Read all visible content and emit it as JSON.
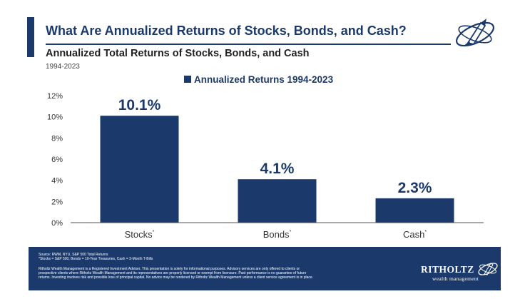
{
  "header": {
    "title": "What Are Annualized Returns of Stocks, Bonds, and Cash?",
    "subtitle": "Annualized Total Returns of Stocks, Bonds, and Cash",
    "date_range": "1994-2023"
  },
  "chart_data": {
    "type": "bar",
    "categories": [
      "Stocks",
      "Bonds",
      "Cash"
    ],
    "series": [
      {
        "name": "Annualized Returns 1994-2023",
        "values": [
          10.1,
          4.1,
          2.3
        ]
      }
    ],
    "data_labels": [
      "10.1%",
      "4.1%",
      "2.3%"
    ],
    "category_marker": "*",
    "y_ticks": [
      "0%",
      "2%",
      "4%",
      "6%",
      "8%",
      "10%",
      "12%"
    ],
    "ylim": [
      0,
      12
    ],
    "grid": false,
    "legend_position": "top",
    "bar_color": "#1b3a6b"
  },
  "footer": {
    "source": "Source: RWM, NYU, S&P 500 Total Returns",
    "definition": "*Stocks = S&P 500, Bonds = 10-Year Treasuries, Cash = 3-Month T-Bills",
    "disclaimer_1": "Ritholtz Wealth Management is a Registered Investment Adviser. This presentation is solely for informational purposes. Advisory services are only offered to clients or",
    "disclaimer_2": "prospective clients where Ritholtz Wealth Management and its representatives are properly licensed or exempt from licensure. Past performance is no guarantee of future",
    "disclaimer_3": "returns. Investing involves risk and possible loss of principal capital. No advice may be rendered by Ritholtz Wealth Management unless a client service agreement is in place.",
    "brand_name": "RITHOLTZ",
    "brand_sub": "wealth management"
  },
  "colors": {
    "primary": "#1b3a6b",
    "axis": "#333333"
  }
}
